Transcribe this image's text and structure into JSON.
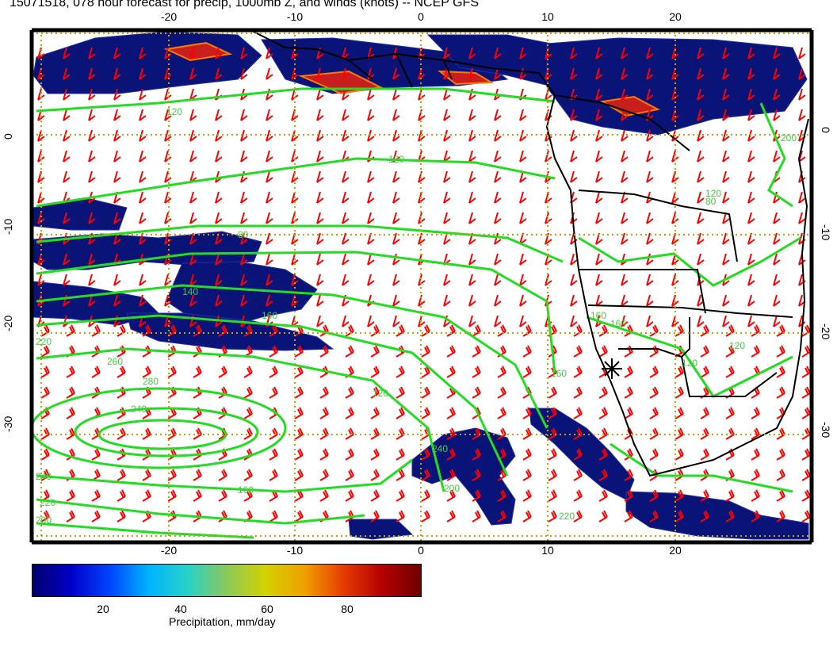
{
  "title": "15071518, 078 hour forecast for precip, 1000mb Z, and winds (knots) -- NCEP GFS",
  "map": {
    "lon_ticks": [
      "-20",
      "-10",
      "0",
      "10",
      "20"
    ],
    "lat_ticks": [
      "0",
      "-10",
      "-20",
      "-30"
    ],
    "lon_range": [
      -30,
      30
    ],
    "lat_range": [
      -40,
      10
    ],
    "contour_labels": [
      "120",
      "80",
      "120",
      "80",
      "160",
      "200",
      "220",
      "240",
      "260",
      "280",
      "240",
      "220",
      "200",
      "160",
      "120",
      "240",
      "220",
      "200",
      "160",
      "160",
      "120",
      "120",
      "140",
      "160",
      "120"
    ],
    "colors": {
      "precip_low": "#0a1478",
      "precip_high": "#c81e1e",
      "contours": "#22dd22",
      "wind_barbs": "#ff0000",
      "coastline": "#000000",
      "grid": "#c8a000"
    },
    "station_marker": "asterisk"
  },
  "colorbar": {
    "ticks": [
      "20",
      "40",
      "60",
      "80"
    ],
    "range": [
      0,
      100
    ],
    "label": "Precipitation, mm/day"
  }
}
